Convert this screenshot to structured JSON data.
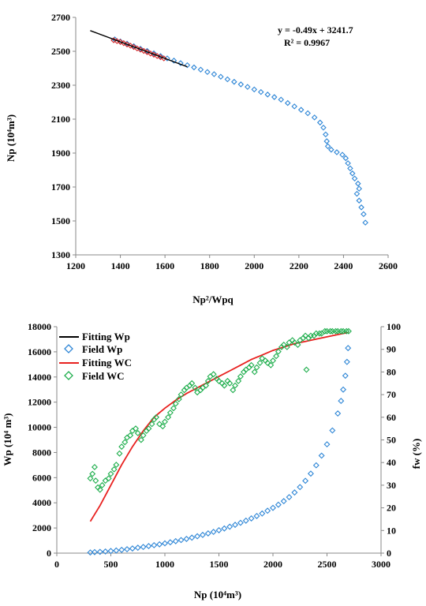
{
  "chart_data": [
    {
      "type": "scatter",
      "xlabel": "Np²/Wpq",
      "ylabel": "Np (10⁴m³)",
      "xlim": [
        1200,
        2600
      ],
      "ylim": [
        1300,
        2700
      ],
      "xticks": [
        1200,
        1400,
        1600,
        1800,
        2000,
        2200,
        2400,
        2600
      ],
      "yticks": [
        1300,
        1500,
        1700,
        1900,
        2100,
        2300,
        2500,
        2700
      ],
      "grid": false,
      "annotation": {
        "equation": "y = -0.49x + 3241.7",
        "r2": "R² = 0.9967"
      },
      "fit_line": {
        "slope": -0.49,
        "intercept": 3241.7,
        "x_range": [
          1265,
          1700
        ],
        "color": "#000000"
      },
      "series": [
        {
          "marker": "diamond",
          "color": "#2e86d6",
          "points": [
            [
              1375,
              2570
            ],
            [
              1400,
              2558
            ],
            [
              1430,
              2545
            ],
            [
              1460,
              2530
            ],
            [
              1490,
              2515
            ],
            [
              1520,
              2502
            ],
            [
              1550,
              2488
            ],
            [
              1580,
              2472
            ],
            [
              1610,
              2458
            ],
            [
              1640,
              2445
            ],
            [
              1670,
              2430
            ],
            [
              1700,
              2418
            ],
            [
              1730,
              2405
            ],
            [
              1760,
              2392
            ],
            [
              1790,
              2378
            ],
            [
              1820,
              2365
            ],
            [
              1850,
              2350
            ],
            [
              1880,
              2335
            ],
            [
              1910,
              2320
            ],
            [
              1940,
              2305
            ],
            [
              1970,
              2290
            ],
            [
              2000,
              2275
            ],
            [
              2030,
              2260
            ],
            [
              2060,
              2245
            ],
            [
              2090,
              2230
            ],
            [
              2120,
              2215
            ],
            [
              2150,
              2195
            ],
            [
              2180,
              2175
            ],
            [
              2210,
              2155
            ],
            [
              2240,
              2135
            ],
            [
              2270,
              2110
            ],
            [
              2295,
              2080
            ],
            [
              2310,
              2050
            ],
            [
              2320,
              2010
            ],
            [
              2325,
              1970
            ],
            [
              2330,
              1940
            ],
            [
              2345,
              1920
            ],
            [
              2370,
              1905
            ],
            [
              2395,
              1890
            ],
            [
              2410,
              1870
            ],
            [
              2420,
              1840
            ],
            [
              2430,
              1810
            ],
            [
              2440,
              1780
            ],
            [
              2450,
              1750
            ],
            [
              2465,
              1720
            ],
            [
              2470,
              1690
            ],
            [
              2460,
              1660
            ],
            [
              2470,
              1620
            ],
            [
              2480,
              1580
            ],
            [
              2490,
              1540
            ],
            [
              2498,
              1490
            ]
          ]
        },
        {
          "marker": "diamond",
          "color": "#d62828",
          "points": [
            [
              1370,
              2565
            ],
            [
              1385,
              2560
            ],
            [
              1400,
              2555
            ],
            [
              1415,
              2548
            ],
            [
              1430,
              2540
            ],
            [
              1445,
              2533
            ],
            [
              1460,
              2525
            ],
            [
              1475,
              2517
            ],
            [
              1490,
              2510
            ],
            [
              1505,
              2502
            ],
            [
              1520,
              2495
            ],
            [
              1535,
              2487
            ],
            [
              1550,
              2480
            ],
            [
              1565,
              2472
            ],
            [
              1580,
              2465
            ],
            [
              1595,
              2458
            ]
          ]
        }
      ]
    },
    {
      "type": "scatter",
      "xlabel": "Np (10⁴m³)",
      "ylabel": "Wp (10⁴ m³)",
      "ylabel_right": "fw (%)",
      "xlim": [
        0,
        3000
      ],
      "ylim": [
        0,
        18000
      ],
      "ylim_right": [
        0,
        100
      ],
      "xticks": [
        0,
        500,
        1000,
        1500,
        2000,
        2500,
        3000
      ],
      "yticks": [
        0,
        2000,
        4000,
        6000,
        8000,
        10000,
        12000,
        14000,
        16000,
        18000
      ],
      "yticks_right": [
        0,
        10,
        20,
        30,
        40,
        50,
        60,
        70,
        80,
        90,
        100
      ],
      "grid": false,
      "legend_position": "top-left",
      "series": [
        {
          "name": "Fitting Wp",
          "type": "line",
          "color": "#000000",
          "axis": "left",
          "points": []
        },
        {
          "name": "Field Wp",
          "type": "scatter",
          "marker": "diamond",
          "color": "#2e86d6",
          "axis": "left",
          "points": [
            [
              310,
              50
            ],
            [
              350,
              80
            ],
            [
              400,
              100
            ],
            [
              450,
              130
            ],
            [
              500,
              170
            ],
            [
              550,
              210
            ],
            [
              600,
              260
            ],
            [
              650,
              310
            ],
            [
              700,
              370
            ],
            [
              750,
              430
            ],
            [
              800,
              490
            ],
            [
              850,
              560
            ],
            [
              900,
              630
            ],
            [
              950,
              700
            ],
            [
              1000,
              780
            ],
            [
              1050,
              860
            ],
            [
              1100,
              950
            ],
            [
              1150,
              1040
            ],
            [
              1200,
              1130
            ],
            [
              1250,
              1230
            ],
            [
              1300,
              1340
            ],
            [
              1350,
              1450
            ],
            [
              1400,
              1570
            ],
            [
              1450,
              1690
            ],
            [
              1500,
              1820
            ],
            [
              1550,
              1960
            ],
            [
              1600,
              2100
            ],
            [
              1650,
              2250
            ],
            [
              1700,
              2410
            ],
            [
              1750,
              2580
            ],
            [
              1800,
              2760
            ],
            [
              1850,
              2950
            ],
            [
              1900,
              3150
            ],
            [
              1950,
              3370
            ],
            [
              2000,
              3600
            ],
            [
              2050,
              3850
            ],
            [
              2100,
              4130
            ],
            [
              2150,
              4450
            ],
            [
              2200,
              4820
            ],
            [
              2250,
              5250
            ],
            [
              2300,
              5750
            ],
            [
              2350,
              6320
            ],
            [
              2400,
              6980
            ],
            [
              2450,
              7750
            ],
            [
              2500,
              8650
            ],
            [
              2550,
              9750
            ],
            [
              2600,
              11100
            ],
            [
              2630,
              12100
            ],
            [
              2650,
              13000
            ],
            [
              2670,
              14100
            ],
            [
              2685,
              15200
            ],
            [
              2695,
              16300
            ]
          ]
        },
        {
          "name": "Fitting WC",
          "type": "line",
          "color": "#e8211f",
          "axis": "right",
          "points": [
            [
              310,
              14
            ],
            [
              400,
              21
            ],
            [
              500,
              30
            ],
            [
              600,
              39
            ],
            [
              700,
              47
            ],
            [
              800,
              54
            ],
            [
              900,
              60
            ],
            [
              1000,
              64
            ],
            [
              1100,
              67.5
            ],
            [
              1200,
              70.5
            ],
            [
              1300,
              73
            ],
            [
              1400,
              75.5
            ],
            [
              1500,
              78
            ],
            [
              1600,
              80.5
            ],
            [
              1700,
              83
            ],
            [
              1800,
              85.5
            ],
            [
              1900,
              87.5
            ],
            [
              2000,
              89.5
            ],
            [
              2100,
              91
            ],
            [
              2200,
              92.5
            ],
            [
              2300,
              93.5
            ],
            [
              2400,
              94.5
            ],
            [
              2500,
              95.5
            ],
            [
              2600,
              96.5
            ],
            [
              2700,
              97.5
            ]
          ]
        },
        {
          "name": "Field WC",
          "type": "scatter",
          "marker": "diamond",
          "color": "#1fae4d",
          "axis": "right",
          "points": [
            [
              310,
              33
            ],
            [
              330,
              35
            ],
            [
              350,
              38
            ],
            [
              360,
              32
            ],
            [
              380,
              29
            ],
            [
              400,
              28
            ],
            [
              420,
              30
            ],
            [
              450,
              32
            ],
            [
              480,
              33
            ],
            [
              500,
              35
            ],
            [
              530,
              37
            ],
            [
              550,
              39
            ],
            [
              580,
              44
            ],
            [
              600,
              47
            ],
            [
              630,
              49
            ],
            [
              650,
              51
            ],
            [
              680,
              52
            ],
            [
              700,
              54
            ],
            [
              730,
              55
            ],
            [
              750,
              53
            ],
            [
              780,
              50
            ],
            [
              800,
              52
            ],
            [
              830,
              54
            ],
            [
              850,
              55
            ],
            [
              880,
              57
            ],
            [
              900,
              59
            ],
            [
              920,
              60
            ],
            [
              950,
              57
            ],
            [
              980,
              56
            ],
            [
              1000,
              58
            ],
            [
              1030,
              60
            ],
            [
              1050,
              62
            ],
            [
              1080,
              64
            ],
            [
              1100,
              66
            ],
            [
              1130,
              68
            ],
            [
              1150,
              70
            ],
            [
              1180,
              72
            ],
            [
              1200,
              73
            ],
            [
              1230,
              74
            ],
            [
              1250,
              75
            ],
            [
              1280,
              73
            ],
            [
              1300,
              71
            ],
            [
              1330,
              72
            ],
            [
              1350,
              73
            ],
            [
              1380,
              74
            ],
            [
              1400,
              76
            ],
            [
              1420,
              78
            ],
            [
              1450,
              79
            ],
            [
              1480,
              77
            ],
            [
              1500,
              76
            ],
            [
              1530,
              75
            ],
            [
              1550,
              74
            ],
            [
              1580,
              76
            ],
            [
              1600,
              75
            ],
            [
              1630,
              72
            ],
            [
              1650,
              74
            ],
            [
              1680,
              76
            ],
            [
              1700,
              78
            ],
            [
              1730,
              80
            ],
            [
              1750,
              81
            ],
            [
              1780,
              82
            ],
            [
              1800,
              83
            ],
            [
              1830,
              80
            ],
            [
              1850,
              82
            ],
            [
              1880,
              84
            ],
            [
              1900,
              86
            ],
            [
              1930,
              85
            ],
            [
              1950,
              84
            ],
            [
              1980,
              83
            ],
            [
              2000,
              85
            ],
            [
              2030,
              87
            ],
            [
              2050,
              89
            ],
            [
              2080,
              91
            ],
            [
              2100,
              92
            ],
            [
              2130,
              91
            ],
            [
              2150,
              93
            ],
            [
              2180,
              94
            ],
            [
              2200,
              93
            ],
            [
              2230,
              92
            ],
            [
              2250,
              94
            ],
            [
              2280,
              95
            ],
            [
              2300,
              96
            ],
            [
              2310,
              81
            ],
            [
              2330,
              95
            ],
            [
              2350,
              96
            ],
            [
              2380,
              96
            ],
            [
              2400,
              97
            ],
            [
              2430,
              97
            ],
            [
              2450,
              97
            ],
            [
              2480,
              98
            ],
            [
              2500,
              98
            ],
            [
              2530,
              98
            ],
            [
              2550,
              98
            ],
            [
              2580,
              98
            ],
            [
              2600,
              98
            ],
            [
              2630,
              98
            ],
            [
              2650,
              98
            ],
            [
              2680,
              98
            ],
            [
              2700,
              98
            ]
          ]
        }
      ]
    }
  ]
}
